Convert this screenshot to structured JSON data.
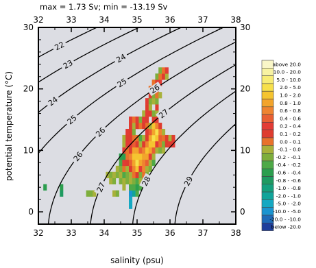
{
  "chart_data": {
    "type": "heatmap",
    "title": "max =  1.73 Sv; min = -13.19 Sv",
    "xlabel": "salinity (psu)",
    "ylabel": "potential temperature (°C)",
    "xlim": [
      32,
      38
    ],
    "ylim": [
      -2,
      30
    ],
    "x_ticks": [
      32,
      33,
      34,
      35,
      36,
      37,
      38
    ],
    "y_ticks": [
      0,
      10,
      20,
      30
    ],
    "bin_size": {
      "salinity": 0.1,
      "temperature": 1
    },
    "grid": false,
    "background_color": "#dcdde3",
    "density_contours": [
      {
        "label": "22",
        "sigma": 22
      },
      {
        "label": "23",
        "sigma": 23
      },
      {
        "label": "24",
        "sigma": 24
      },
      {
        "label": "24",
        "sigma": 24
      },
      {
        "label": "25",
        "sigma": 25
      },
      {
        "label": "25",
        "sigma": 25
      },
      {
        "label": "26",
        "sigma": 26
      },
      {
        "label": "26",
        "sigma": 26
      },
      {
        "label": "26",
        "sigma": 26
      },
      {
        "label": "27",
        "sigma": 27
      },
      {
        "label": "27",
        "sigma": 27
      },
      {
        "label": "28",
        "sigma": 28
      },
      {
        "label": "29",
        "sigma": 29
      }
    ],
    "legend": {
      "placement": "right",
      "title": "",
      "entries": [
        {
          "label": "above   20.0",
          "color": "#f9f6c8"
        },
        {
          "label": "10.0 -  20.0",
          "color": "#f7f2a2"
        },
        {
          "label": "5.0 -  10.0",
          "color": "#f7ec75"
        },
        {
          "label": "2.0 -   5.0",
          "color": "#f7e04b"
        },
        {
          "label": "1.0 -   2.0",
          "color": "#f5c430"
        },
        {
          "label": "0.8 -   1.0",
          "color": "#f2a42c"
        },
        {
          "label": "0.6 -   0.8",
          "color": "#ee8430"
        },
        {
          "label": "0.4 -   0.6",
          "color": "#e85f32"
        },
        {
          "label": "0.2 -   0.4",
          "color": "#e23b35"
        },
        {
          "label": "0.1 -   0.2",
          "color": "#de3c2f"
        },
        {
          "label": "0.0 -   0.1",
          "color": "#e8722b"
        },
        {
          "label": "-0.1 -   0.0",
          "color": "#a8b13a"
        },
        {
          "label": "-0.2 -  -0.1",
          "color": "#7eae3c"
        },
        {
          "label": "-0.4 -  -0.2",
          "color": "#4ea947"
        },
        {
          "label": "-0.6 -  -0.4",
          "color": "#2c9e4e"
        },
        {
          "label": "-0.8 -  -0.6",
          "color": "#1f9a61"
        },
        {
          "label": "-1.0 -  -0.8",
          "color": "#15a07d"
        },
        {
          "label": "-2.0 -  -1.0",
          "color": "#11a49a"
        },
        {
          "label": "-5.0 -  -2.0",
          "color": "#15a8c2"
        },
        {
          "label": "-10.0 -  -5.0",
          "color": "#1b94d0"
        },
        {
          "label": "-20.0 - -10.0",
          "color": "#1f6bb8"
        },
        {
          "label": "below  -20.0",
          "color": "#1f3f9c"
        }
      ]
    },
    "cells": [
      {
        "s": 32.2,
        "t": 4,
        "cls": 14
      },
      {
        "s": 32.7,
        "t": 4,
        "cls": 14
      },
      {
        "s": 32.7,
        "t": 3,
        "cls": 15
      },
      {
        "s": 33.5,
        "t": 3,
        "cls": 12
      },
      {
        "s": 33.6,
        "t": 3,
        "cls": 12
      },
      {
        "s": 33.7,
        "t": 3,
        "cls": 11
      },
      {
        "s": 34.1,
        "t": 6,
        "cls": 11
      },
      {
        "s": 34.2,
        "t": 6,
        "cls": 12
      },
      {
        "s": 34.2,
        "t": 5,
        "cls": 11
      },
      {
        "s": 34.3,
        "t": 3,
        "cls": 11
      },
      {
        "s": 34.3,
        "t": 5,
        "cls": 12
      },
      {
        "s": 34.3,
        "t": 6,
        "cls": 11
      },
      {
        "s": 34.4,
        "t": 3,
        "cls": 12
      },
      {
        "s": 34.4,
        "t": 6,
        "cls": 12
      },
      {
        "s": 34.4,
        "t": 7,
        "cls": 11
      },
      {
        "s": 34.5,
        "t": 5,
        "cls": 12
      },
      {
        "s": 34.5,
        "t": 6,
        "cls": 11
      },
      {
        "s": 34.5,
        "t": 7,
        "cls": 12
      },
      {
        "s": 34.5,
        "t": 8,
        "cls": 13
      },
      {
        "s": 34.5,
        "t": 9,
        "cls": 14
      },
      {
        "s": 34.6,
        "t": 4,
        "cls": 11
      },
      {
        "s": 34.6,
        "t": 5,
        "cls": 11
      },
      {
        "s": 34.6,
        "t": 6,
        "cls": 13
      },
      {
        "s": 34.6,
        "t": 7,
        "cls": 10
      },
      {
        "s": 34.6,
        "t": 8,
        "cls": 8
      },
      {
        "s": 34.6,
        "t": 9,
        "cls": 14
      },
      {
        "s": 34.6,
        "t": 10,
        "cls": 8
      },
      {
        "s": 34.6,
        "t": 11,
        "cls": 11
      },
      {
        "s": 34.6,
        "t": 12,
        "cls": 11
      },
      {
        "s": 34.7,
        "t": 5,
        "cls": 12
      },
      {
        "s": 34.7,
        "t": 6,
        "cls": 12
      },
      {
        "s": 34.7,
        "t": 7,
        "cls": 11
      },
      {
        "s": 34.7,
        "t": 8,
        "cls": 9
      },
      {
        "s": 34.7,
        "t": 9,
        "cls": 10
      },
      {
        "s": 34.7,
        "t": 10,
        "cls": 10
      },
      {
        "s": 34.7,
        "t": 11,
        "cls": 8
      },
      {
        "s": 34.7,
        "t": 12,
        "cls": 9
      },
      {
        "s": 34.7,
        "t": 13,
        "cls": 8
      },
      {
        "s": 34.8,
        "t": 1,
        "cls": 18
      },
      {
        "s": 34.8,
        "t": 2,
        "cls": 18
      },
      {
        "s": 34.8,
        "t": 3,
        "cls": 19
      },
      {
        "s": 34.8,
        "t": 4,
        "cls": 13
      },
      {
        "s": 34.8,
        "t": 5,
        "cls": 11
      },
      {
        "s": 34.8,
        "t": 6,
        "cls": 11
      },
      {
        "s": 34.8,
        "t": 7,
        "cls": 9
      },
      {
        "s": 34.8,
        "t": 8,
        "cls": 7
      },
      {
        "s": 34.8,
        "t": 9,
        "cls": 6
      },
      {
        "s": 34.8,
        "t": 10,
        "cls": 9
      },
      {
        "s": 34.8,
        "t": 11,
        "cls": 8
      },
      {
        "s": 34.8,
        "t": 12,
        "cls": 9
      },
      {
        "s": 34.8,
        "t": 13,
        "cls": 9
      },
      {
        "s": 34.8,
        "t": 14,
        "cls": 9
      },
      {
        "s": 34.8,
        "t": 15,
        "cls": 8
      },
      {
        "s": 34.9,
        "t": 3,
        "cls": 17
      },
      {
        "s": 34.9,
        "t": 4,
        "cls": 13
      },
      {
        "s": 34.9,
        "t": 5,
        "cls": 12
      },
      {
        "s": 34.9,
        "t": 6,
        "cls": 10
      },
      {
        "s": 34.9,
        "t": 7,
        "cls": 6
      },
      {
        "s": 34.9,
        "t": 8,
        "cls": 5
      },
      {
        "s": 34.9,
        "t": 9,
        "cls": 4
      },
      {
        "s": 34.9,
        "t": 10,
        "cls": 5
      },
      {
        "s": 34.9,
        "t": 11,
        "cls": 7
      },
      {
        "s": 34.9,
        "t": 12,
        "cls": 10
      },
      {
        "s": 34.9,
        "t": 13,
        "cls": 12
      },
      {
        "s": 34.9,
        "t": 14,
        "cls": 11
      },
      {
        "s": 34.9,
        "t": 15,
        "cls": 10
      },
      {
        "s": 35.0,
        "t": 3,
        "cls": 13
      },
      {
        "s": 35.0,
        "t": 4,
        "cls": 14
      },
      {
        "s": 35.0,
        "t": 5,
        "cls": 13
      },
      {
        "s": 35.0,
        "t": 6,
        "cls": 9
      },
      {
        "s": 35.0,
        "t": 7,
        "cls": 4
      },
      {
        "s": 35.0,
        "t": 8,
        "cls": 3
      },
      {
        "s": 35.0,
        "t": 9,
        "cls": 4
      },
      {
        "s": 35.0,
        "t": 10,
        "cls": 5
      },
      {
        "s": 35.0,
        "t": 11,
        "cls": 9
      },
      {
        "s": 35.0,
        "t": 12,
        "cls": 10
      },
      {
        "s": 35.0,
        "t": 14,
        "cls": 9
      },
      {
        "s": 35.0,
        "t": 15,
        "cls": 8
      },
      {
        "s": 35.1,
        "t": 4,
        "cls": 13
      },
      {
        "s": 35.1,
        "t": 5,
        "cls": 11
      },
      {
        "s": 35.1,
        "t": 6,
        "cls": 12
      },
      {
        "s": 35.1,
        "t": 7,
        "cls": 8
      },
      {
        "s": 35.1,
        "t": 8,
        "cls": 5
      },
      {
        "s": 35.1,
        "t": 9,
        "cls": 4
      },
      {
        "s": 35.1,
        "t": 10,
        "cls": 7
      },
      {
        "s": 35.1,
        "t": 11,
        "cls": 11
      },
      {
        "s": 35.1,
        "t": 12,
        "cls": 13
      },
      {
        "s": 35.1,
        "t": 14,
        "cls": 10
      },
      {
        "s": 35.1,
        "t": 15,
        "cls": 12
      },
      {
        "s": 35.2,
        "t": 5,
        "cls": 12
      },
      {
        "s": 35.2,
        "t": 6,
        "cls": 10
      },
      {
        "s": 35.2,
        "t": 7,
        "cls": 6
      },
      {
        "s": 35.2,
        "t": 8,
        "cls": 6
      },
      {
        "s": 35.2,
        "t": 9,
        "cls": 5
      },
      {
        "s": 35.2,
        "t": 10,
        "cls": 6
      },
      {
        "s": 35.2,
        "t": 11,
        "cls": 9
      },
      {
        "s": 35.2,
        "t": 12,
        "cls": 11
      },
      {
        "s": 35.2,
        "t": 14,
        "cls": 9
      },
      {
        "s": 35.2,
        "t": 15,
        "cls": 8
      },
      {
        "s": 35.2,
        "t": 16,
        "cls": 11
      },
      {
        "s": 35.3,
        "t": 6,
        "cls": 12
      },
      {
        "s": 35.3,
        "t": 7,
        "cls": 11
      },
      {
        "s": 35.3,
        "t": 8,
        "cls": 7
      },
      {
        "s": 35.3,
        "t": 9,
        "cls": 5
      },
      {
        "s": 35.3,
        "t": 10,
        "cls": 4
      },
      {
        "s": 35.3,
        "t": 11,
        "cls": 6
      },
      {
        "s": 35.3,
        "t": 12,
        "cls": 9
      },
      {
        "s": 35.3,
        "t": 13,
        "cls": 8
      },
      {
        "s": 35.3,
        "t": 14,
        "cls": 10
      },
      {
        "s": 35.3,
        "t": 15,
        "cls": 9
      },
      {
        "s": 35.3,
        "t": 16,
        "cls": 8
      },
      {
        "s": 35.3,
        "t": 17,
        "cls": 9
      },
      {
        "s": 35.3,
        "t": 18,
        "cls": 8
      },
      {
        "s": 35.4,
        "t": 7,
        "cls": 12
      },
      {
        "s": 35.4,
        "t": 8,
        "cls": 11
      },
      {
        "s": 35.4,
        "t": 9,
        "cls": 8
      },
      {
        "s": 35.4,
        "t": 10,
        "cls": 5
      },
      {
        "s": 35.4,
        "t": 11,
        "cls": 4
      },
      {
        "s": 35.4,
        "t": 12,
        "cls": 5
      },
      {
        "s": 35.4,
        "t": 13,
        "cls": 7
      },
      {
        "s": 35.4,
        "t": 14,
        "cls": 11
      },
      {
        "s": 35.4,
        "t": 16,
        "cls": 9
      },
      {
        "s": 35.4,
        "t": 17,
        "cls": 11
      },
      {
        "s": 35.4,
        "t": 18,
        "cls": 12
      },
      {
        "s": 35.4,
        "t": 19,
        "cls": 9
      },
      {
        "s": 35.4,
        "t": 20,
        "cls": 10
      },
      {
        "s": 35.5,
        "t": 8,
        "cls": 13
      },
      {
        "s": 35.5,
        "t": 9,
        "cls": 11
      },
      {
        "s": 35.5,
        "t": 10,
        "cls": 7
      },
      {
        "s": 35.5,
        "t": 11,
        "cls": 4
      },
      {
        "s": 35.5,
        "t": 12,
        "cls": 3
      },
      {
        "s": 35.5,
        "t": 13,
        "cls": 5
      },
      {
        "s": 35.5,
        "t": 14,
        "cls": 4
      },
      {
        "s": 35.5,
        "t": 15,
        "cls": 9
      },
      {
        "s": 35.5,
        "t": 16,
        "cls": 12
      },
      {
        "s": 35.5,
        "t": 18,
        "cls": 11
      },
      {
        "s": 35.5,
        "t": 19,
        "cls": 12
      },
      {
        "s": 35.5,
        "t": 20,
        "cls": 9
      },
      {
        "s": 35.5,
        "t": 21,
        "cls": 10
      },
      {
        "s": 35.6,
        "t": 10,
        "cls": 11
      },
      {
        "s": 35.6,
        "t": 11,
        "cls": 8
      },
      {
        "s": 35.6,
        "t": 12,
        "cls": 4
      },
      {
        "s": 35.6,
        "t": 13,
        "cls": 3
      },
      {
        "s": 35.6,
        "t": 14,
        "cls": 6
      },
      {
        "s": 35.6,
        "t": 15,
        "cls": 8
      },
      {
        "s": 35.6,
        "t": 16,
        "cls": 11
      },
      {
        "s": 35.6,
        "t": 17,
        "cls": 9
      },
      {
        "s": 35.6,
        "t": 18,
        "cls": 12
      },
      {
        "s": 35.6,
        "t": 19,
        "cls": 10
      },
      {
        "s": 35.6,
        "t": 20,
        "cls": 8
      },
      {
        "s": 35.6,
        "t": 21,
        "cls": 9
      },
      {
        "s": 35.6,
        "t": 22,
        "cls": 12
      },
      {
        "s": 35.7,
        "t": 10,
        "cls": 12
      },
      {
        "s": 35.7,
        "t": 11,
        "cls": 10
      },
      {
        "s": 35.7,
        "t": 12,
        "cls": 7
      },
      {
        "s": 35.7,
        "t": 13,
        "cls": 6
      },
      {
        "s": 35.7,
        "t": 14,
        "cls": 9
      },
      {
        "s": 35.7,
        "t": 19,
        "cls": 11
      },
      {
        "s": 35.7,
        "t": 21,
        "cls": 8
      },
      {
        "s": 35.7,
        "t": 22,
        "cls": 10
      },
      {
        "s": 35.7,
        "t": 23,
        "cls": 12
      },
      {
        "s": 35.8,
        "t": 10,
        "cls": 11
      },
      {
        "s": 35.8,
        "t": 11,
        "cls": 12
      },
      {
        "s": 35.8,
        "t": 12,
        "cls": 10
      },
      {
        "s": 35.8,
        "t": 13,
        "cls": 11
      },
      {
        "s": 35.8,
        "t": 22,
        "cls": 9
      },
      {
        "s": 35.8,
        "t": 23,
        "cls": 10
      },
      {
        "s": 35.9,
        "t": 11,
        "cls": 9
      },
      {
        "s": 35.9,
        "t": 12,
        "cls": 9
      },
      {
        "s": 35.9,
        "t": 22,
        "cls": 11
      },
      {
        "s": 35.9,
        "t": 23,
        "cls": 8
      },
      {
        "s": 36.0,
        "t": 11,
        "cls": 9
      },
      {
        "s": 36.0,
        "t": 12,
        "cls": 11
      },
      {
        "s": 36.1,
        "t": 11,
        "cls": 8
      },
      {
        "s": 36.1,
        "t": 12,
        "cls": 9
      }
    ]
  }
}
